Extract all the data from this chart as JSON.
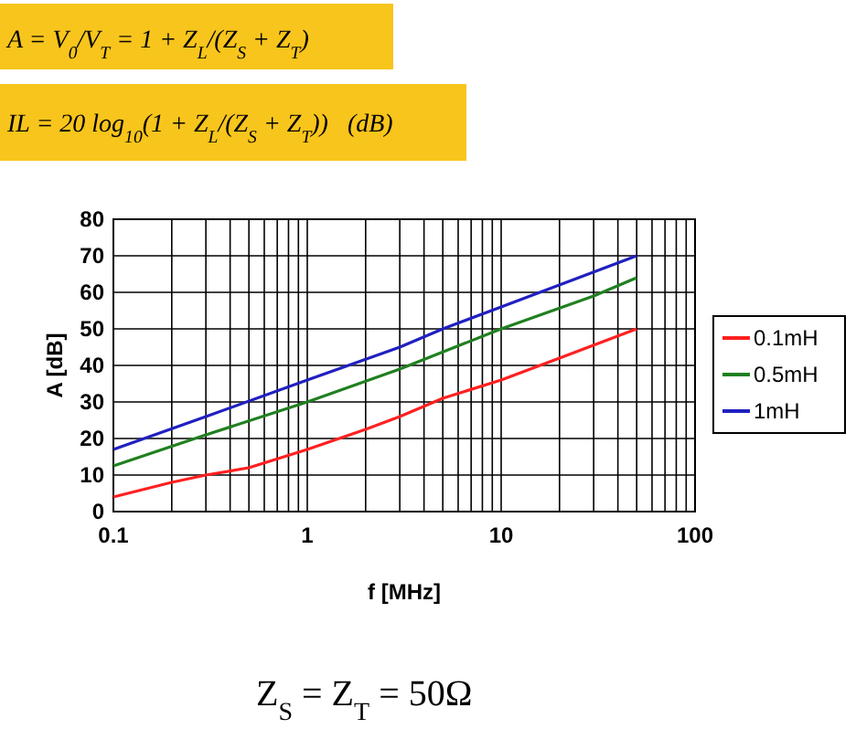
{
  "chart_data": {
    "type": "line",
    "xlabel": "f [MHz]",
    "ylabel": "A [dB]",
    "log": "x",
    "xlim": [
      0.1,
      100
    ],
    "ylim": [
      0,
      80
    ],
    "xticks": [
      0.1,
      {
        "value": 0.2,
        "label": null
      },
      {
        "value": 0.3,
        "label": null
      },
      {
        "value": 0.4,
        "label": null
      },
      {
        "value": 0.5,
        "label": null
      },
      {
        "value": 0.6,
        "label": null
      },
      {
        "value": 0.7,
        "label": null
      },
      {
        "value": 0.8,
        "label": null
      },
      {
        "value": 0.9,
        "label": null
      },
      1,
      {
        "value": 2,
        "label": null
      },
      {
        "value": 3,
        "label": null
      },
      {
        "value": 4,
        "label": null
      },
      {
        "value": 5,
        "label": null
      },
      {
        "value": 6,
        "label": null
      },
      {
        "value": 7,
        "label": null
      },
      {
        "value": 8,
        "label": null
      },
      {
        "value": 9,
        "label": null
      },
      10,
      {
        "value": 20,
        "label": null
      },
      {
        "value": 30,
        "label": null
      },
      {
        "value": 40,
        "label": null
      },
      {
        "value": 50,
        "label": null
      },
      {
        "value": 60,
        "label": null
      },
      {
        "value": 70,
        "label": null
      },
      {
        "value": 80,
        "label": null
      },
      {
        "value": 90,
        "label": null
      },
      100
    ],
    "yticks": [
      0,
      10,
      20,
      30,
      40,
      50,
      60,
      70,
      80
    ],
    "grid": true,
    "legend": "right",
    "marker": "none",
    "line_style": "solid",
    "series": [
      {
        "name": "0.1mH",
        "color": "#ff2020",
        "x": [
          0.1,
          0.2,
          0.3,
          0.5,
          1,
          2,
          3,
          5,
          10,
          20,
          50
        ],
        "values": [
          4,
          8,
          10,
          12,
          17,
          22.5,
          26,
          31,
          36,
          42,
          50
        ]
      },
      {
        "name": "0.5mH",
        "color": "#208020",
        "x": [
          0.1,
          0.3,
          1,
          3,
          10,
          30,
          50
        ],
        "values": [
          12.5,
          21,
          30,
          39,
          50,
          59,
          64
        ]
      },
      {
        "name": "1mH",
        "color": "#2020c0",
        "x": [
          0.1,
          0.3,
          1,
          3,
          5,
          10,
          50
        ],
        "values": [
          17,
          26,
          36,
          45,
          50,
          56,
          70
        ]
      }
    ],
    "annotations": [
      "A = V$_{0}$/V$_{T}$ = 1 + Z$_{L}$/(Z$_{S}$ + Z$_{T}$)",
      "IL = 20 log$_{10}$(1 + Z$_{L}$/(Z$_{S}$ + Z$_{T}$))   (dB)",
      "Z$_{S}$ = Z$_{T}$ = 50Ω"
    ]
  }
}
